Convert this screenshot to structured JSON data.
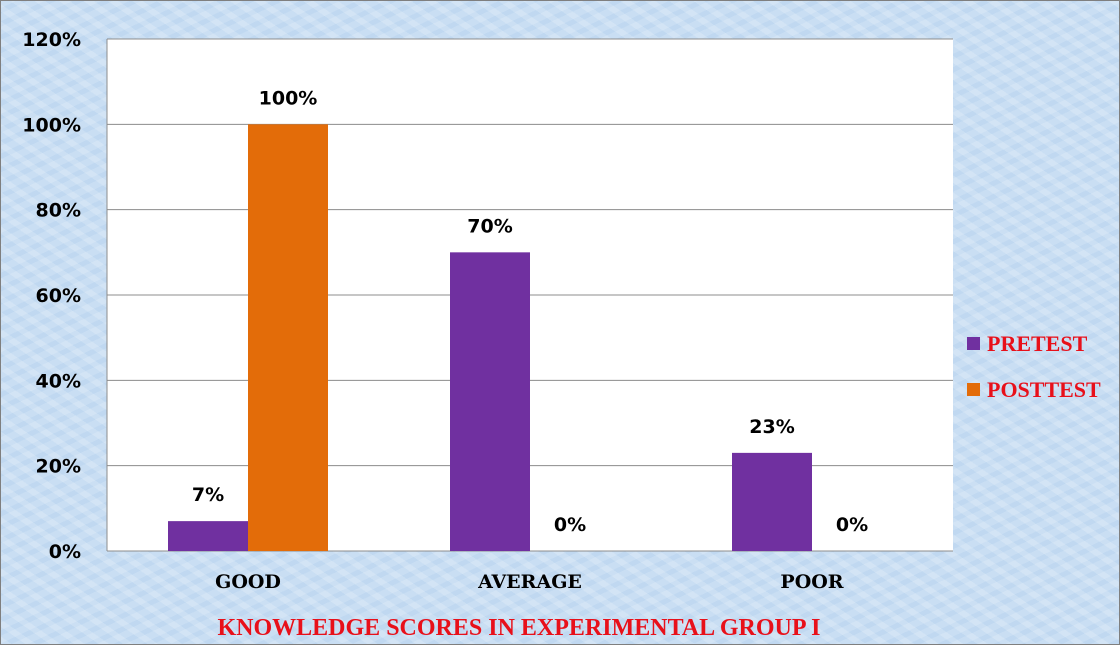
{
  "chart_data": {
    "type": "bar",
    "title": "KNOWLEDGE SCORES IN EXPERIMENTAL GROUP I",
    "categories": [
      "GOOD",
      "AVERAGE",
      "POOR"
    ],
    "series": [
      {
        "name": "PRETEST",
        "values": [
          7,
          70,
          23
        ],
        "labels": [
          "7%",
          "70%",
          "23%"
        ],
        "color": "#7030a0"
      },
      {
        "name": "POSTTEST",
        "values": [
          100,
          0,
          0
        ],
        "labels": [
          "100%",
          "0%",
          "0%"
        ],
        "color": "#e36c09"
      }
    ],
    "ylim": [
      0,
      120
    ],
    "yticks": [
      "0%",
      "20%",
      "40%",
      "60%",
      "80%",
      "100%",
      "120%"
    ],
    "grid": true,
    "legend_position": "right",
    "title_color": "#e8101a",
    "legend_text_color": "#e8101a",
    "plot_background": "#ffffff"
  }
}
